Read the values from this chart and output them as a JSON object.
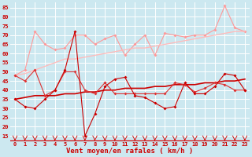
{
  "background_color": "#cce8f0",
  "grid_color": "#ffffff",
  "xlabel": "Vent moyen/en rafales ( km/h )",
  "xlabel_color": "#cc0000",
  "xlabel_fontsize": 6.5,
  "tick_color": "#cc0000",
  "yticks": [
    15,
    20,
    25,
    30,
    35,
    40,
    45,
    50,
    55,
    60,
    65,
    70,
    75,
    80,
    85
  ],
  "xticks": [
    0,
    1,
    2,
    3,
    4,
    5,
    6,
    7,
    8,
    9,
    10,
    11,
    12,
    13,
    14,
    15,
    16,
    17,
    18,
    19,
    20,
    21,
    22,
    23
  ],
  "ylim": [
    12,
    88
  ],
  "xlim": [
    -0.5,
    23.5
  ],
  "x": [
    0,
    1,
    2,
    3,
    4,
    5,
    6,
    7,
    8,
    9,
    10,
    11,
    12,
    13,
    14,
    15,
    16,
    17,
    18,
    19,
    20,
    21,
    22,
    23
  ],
  "mean_y": [
    35,
    31,
    30,
    35,
    40,
    51,
    72,
    15,
    27,
    42,
    46,
    47,
    37,
    36,
    33,
    30,
    31,
    44,
    38,
    38,
    42,
    49,
    48,
    40
  ],
  "gust_y": [
    48,
    45,
    51,
    37,
    40,
    50,
    50,
    40,
    38,
    44,
    38,
    38,
    38,
    38,
    38,
    38,
    44,
    43,
    39,
    41,
    44,
    43,
    40,
    40
  ],
  "mean_reg": [
    35,
    36,
    37,
    37,
    37,
    38,
    38,
    39,
    39,
    40,
    40,
    41,
    41,
    41,
    42,
    42,
    43,
    43,
    43,
    44,
    44,
    45,
    45,
    46
  ],
  "gust_reg": [
    48,
    49,
    51,
    53,
    55,
    57,
    57,
    58,
    59,
    60,
    61,
    62,
    63,
    63,
    64,
    65,
    66,
    67,
    68,
    69,
    70,
    71,
    72,
    72
  ],
  "gust_jagged": [
    48,
    51,
    72,
    65,
    62,
    63,
    70,
    70,
    65,
    68,
    70,
    59,
    65,
    70,
    59,
    71,
    70,
    69,
    70,
    70,
    73,
    86,
    74,
    72
  ],
  "line_dark_red": "#cc0000",
  "line_med_red": "#dd3333",
  "line_light_red": "#ff9999",
  "line_pale_red": "#ffbbbb",
  "marker_size": 2.0,
  "linewidth": 0.8
}
